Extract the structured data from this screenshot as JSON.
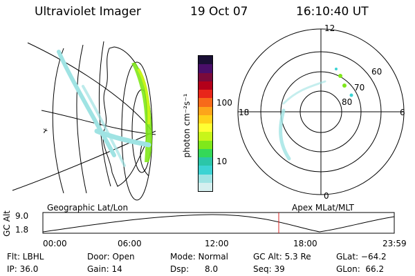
{
  "header": {
    "title": "Ultraviolet Imager",
    "date": "19 Oct 07",
    "time": "16:10:40 UT"
  },
  "colorbar": {
    "unit_label": "photon cm⁻²s⁻¹",
    "ticks": [
      "100",
      "10"
    ],
    "colors": [
      "#1a0f35",
      "#4a0e6a",
      "#7a0a3a",
      "#b3001a",
      "#e8251a",
      "#f76a1a",
      "#fda51a",
      "#ffd21a",
      "#ffff33",
      "#c8f51a",
      "#7fe81a",
      "#34d858",
      "#2bc6a8",
      "#3cd3d3",
      "#9fe3e3",
      "#d5efef"
    ]
  },
  "polar": {
    "labels": {
      "top": "12",
      "bottom": "0",
      "left": "18",
      "right": "6"
    },
    "rings": [
      "60",
      "70",
      "80"
    ]
  },
  "footer": {
    "left_label": "Geographic Lat/Lon",
    "right_label": "Apex MLat/MLT",
    "axis_title": "GC Alt",
    "y_ticks": [
      "9.0",
      "1.8"
    ],
    "time_ticks": [
      "00:00",
      "06:00",
      "12:00",
      "18:00",
      "23:59"
    ],
    "marker_color": "#d62020"
  },
  "status": {
    "row1": {
      "flt": "Flt: LBHL",
      "door": "Door: Open",
      "mode": "Mode: Normal",
      "gc_alt": "GC Alt: 5.3 Re",
      "glat": "GLat:  −64.2"
    },
    "row2": {
      "ip": "IP: 36.0",
      "gain": "Gain: 14",
      "dsp": "Dsp:      8.0",
      "seq": "Seq: 39",
      "glon": "GLon:  66.2"
    }
  }
}
